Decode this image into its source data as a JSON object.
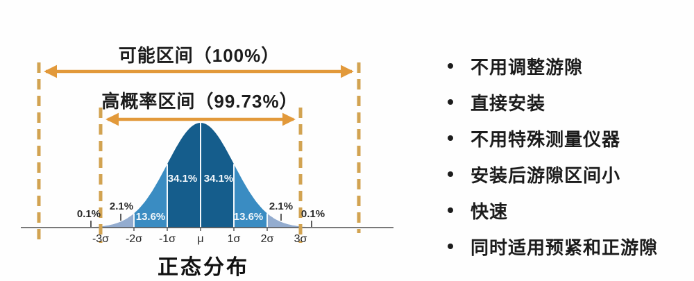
{
  "chart_data": {
    "type": "area",
    "subtype": "normal-distribution",
    "title": "正态分布",
    "x_ticks": [
      "-3σ",
      "-2σ",
      "-1σ",
      "μ",
      "1σ",
      "2σ",
      "3σ"
    ],
    "segments": [
      {
        "from": "-∞",
        "to": "-3σ",
        "label": "0.1%",
        "value": 0.1
      },
      {
        "from": "-3σ",
        "to": "-2σ",
        "label": "2.1%",
        "value": 2.1
      },
      {
        "from": "-2σ",
        "to": "-1σ",
        "label": "13.6%",
        "value": 13.6
      },
      {
        "from": "-1σ",
        "to": "μ",
        "label": "34.1%",
        "value": 34.1
      },
      {
        "from": "μ",
        "to": "1σ",
        "label": "34.1%",
        "value": 34.1
      },
      {
        "from": "1σ",
        "to": "2σ",
        "label": "13.6%",
        "value": 13.6
      },
      {
        "from": "2σ",
        "to": "3σ",
        "label": "2.1%",
        "value": 2.1
      },
      {
        "from": "3σ",
        "to": "+∞",
        "label": "0.1%",
        "value": 0.1
      }
    ],
    "segment_colors": [
      "#c2d2e6",
      "#93accf",
      "#3a8cc2",
      "#155d8c",
      "#155d8c",
      "#3a8cc2",
      "#93accf",
      "#c2d2e6"
    ],
    "annotations": [
      {
        "label": "可能区间（100%）",
        "coverage": "100%",
        "span": "full-axis"
      },
      {
        "label": "高概率区间（99.73%）",
        "coverage": "99.73%",
        "span": "-3σ..3σ"
      }
    ],
    "legend": "none",
    "grid": false,
    "accent_color": "#dfa043",
    "dash_color": "#d2a351",
    "axis_color": "#4d4d4d"
  },
  "bullets": {
    "items": [
      {
        "label": "不用调整游隙"
      },
      {
        "label": "直接安装"
      },
      {
        "label": "不用特殊测量仪器"
      },
      {
        "label": "安装后游隙区间小"
      },
      {
        "label": "快速"
      },
      {
        "label": "同时适用预紧和正游隙"
      }
    ]
  }
}
